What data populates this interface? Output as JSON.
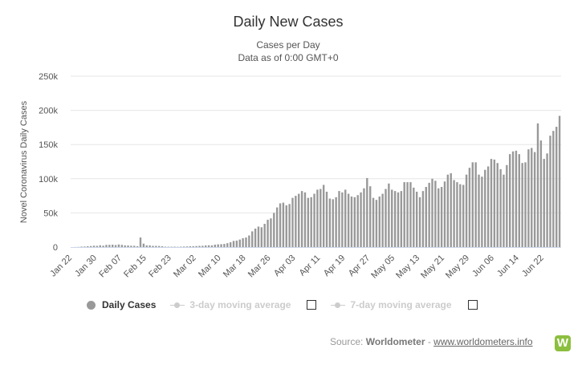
{
  "chart_data": {
    "type": "bar",
    "title": "Daily New Cases",
    "subtitle": [
      "Cases per Day",
      "Data as of 0:00 GMT+0"
    ],
    "xlabel": "",
    "ylabel": "Novel Coronavirus Daily Cases",
    "ylim": [
      0,
      250000
    ],
    "yticks": [
      0,
      50000,
      100000,
      150000,
      200000,
      250000
    ],
    "ytick_labels": [
      "0",
      "50k",
      "100k",
      "150k",
      "200k",
      "250k"
    ],
    "start_date": "Jan 22",
    "tick_labels": [
      "Jan 22",
      "Jan 30",
      "Feb 07",
      "Feb 15",
      "Feb 23",
      "Mar 02",
      "Mar 10",
      "Mar 18",
      "Mar 26",
      "Apr 03",
      "Apr 11",
      "Apr 19",
      "Apr 27",
      "May 05",
      "May 13",
      "May 21",
      "May 29",
      "Jun 06",
      "Jun 14",
      "Jun 22"
    ],
    "tick_every": 8,
    "color": "#999999",
    "series": [
      {
        "name": "Daily Cases",
        "values": [
          0,
          100,
          250,
          700,
          800,
          1200,
          1500,
          2000,
          1800,
          2600,
          2000,
          3200,
          3300,
          3500,
          3000,
          3800,
          3200,
          2500,
          2400,
          2000,
          1900,
          1300,
          14000,
          5000,
          2500,
          2500,
          1800,
          1800,
          1600,
          1200,
          600,
          500,
          500,
          600,
          400,
          600,
          800,
          900,
          1200,
          1300,
          1500,
          1800,
          1900,
          2400,
          2600,
          2500,
          3500,
          4000,
          4200,
          4600,
          5700,
          7000,
          9000,
          9500,
          11000,
          13000,
          14000,
          17000,
          23000,
          27000,
          30000,
          29000,
          34000,
          40000,
          42000,
          50000,
          58000,
          64000,
          65000,
          61000,
          63000,
          72000,
          75000,
          78000,
          82000,
          80000,
          72000,
          73000,
          78000,
          84000,
          85000,
          91000,
          81000,
          71000,
          70000,
          73000,
          82000,
          80000,
          84000,
          78000,
          74000,
          73000,
          76000,
          80000,
          86000,
          101000,
          89000,
          72000,
          69000,
          74000,
          78000,
          85000,
          93000,
          84000,
          82000,
          80000,
          82000,
          95000,
          95000,
          95000,
          87000,
          81000,
          73000,
          82000,
          88000,
          94000,
          100000,
          97000,
          86000,
          88000,
          96000,
          106000,
          108000,
          98000,
          95000,
          92000,
          91000,
          106000,
          116000,
          124000,
          124000,
          106000,
          103000,
          113000,
          118000,
          129000,
          128000,
          123000,
          114000,
          106000,
          120000,
          136000,
          140000,
          141000,
          136000,
          123000,
          124000,
          143000,
          145000,
          139000,
          181000,
          156000,
          129000,
          137000,
          163000,
          170000,
          176000,
          192000
        ]
      },
      {
        "name": "3-day moving average",
        "visible": false
      },
      {
        "name": "7-day moving average",
        "visible": false
      }
    ],
    "legend_position": "bottom-left"
  },
  "source": {
    "prefix": "Source: ",
    "name": "Worldometer",
    "separator": " - ",
    "link": "www.worldometers.info",
    "logo_letter": "W"
  }
}
